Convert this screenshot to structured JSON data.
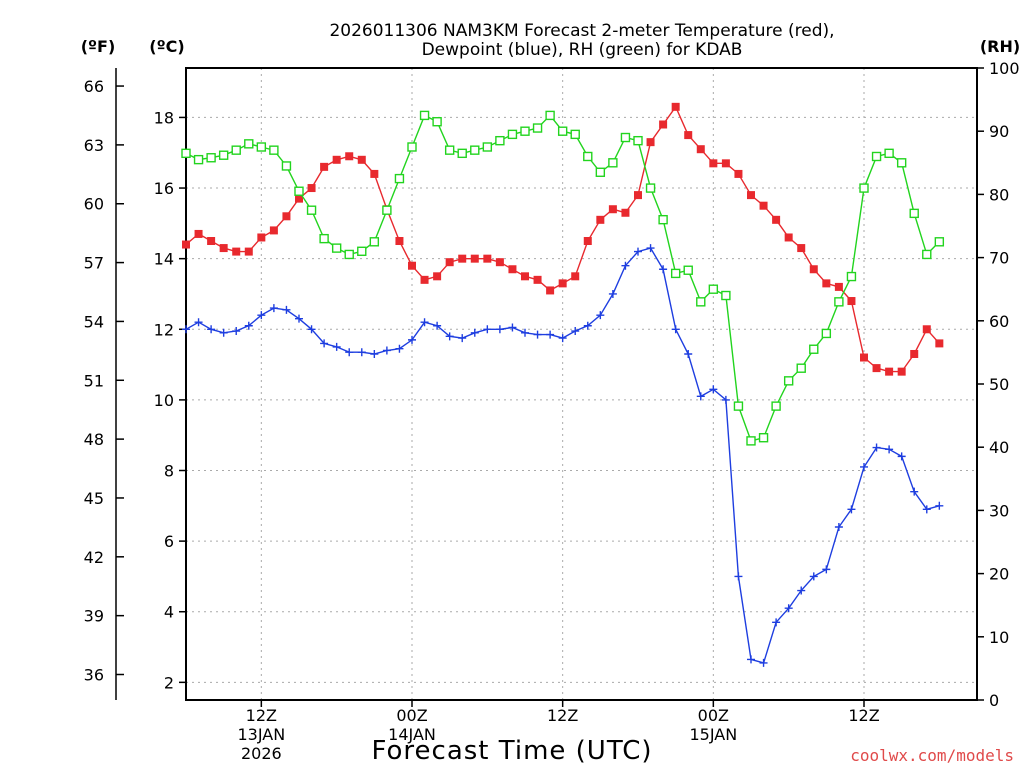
{
  "chart_data": {
    "type": "line",
    "title_line1": "2026011306 NAM3KM Forecast 2-meter Temperature (red),",
    "title_line2": "Dewpoint (blue), RH (green) for KDAB",
    "xlabel": "Forecast Time (UTC)",
    "credit": "coolwx.com/models",
    "units": {
      "fahrenheit": "(ºF)",
      "celsius": "(ºC)",
      "rh": "(RH)"
    },
    "x_range_hours": [
      0,
      63
    ],
    "y_celsius_range": [
      1.5,
      19.4
    ],
    "y_rh_range": [
      0,
      100
    ],
    "celsius_ticks": [
      "2",
      "4",
      "6",
      "8",
      "10",
      "12",
      "14",
      "16",
      "18"
    ],
    "fahrenheit_ticks": [
      "36",
      "39",
      "42",
      "45",
      "48",
      "51",
      "54",
      "57",
      "60",
      "63",
      "66"
    ],
    "rh_ticks": [
      "0",
      "10",
      "20",
      "30",
      "40",
      "50",
      "60",
      "70",
      "80",
      "90",
      "100"
    ],
    "x_ticks": [
      {
        "hour": 6,
        "line1": "12Z",
        "line2": "13JAN",
        "line3": "2026"
      },
      {
        "hour": 18,
        "line1": "00Z",
        "line2": "14JAN",
        "line3": ""
      },
      {
        "hour": 30,
        "line1": "12Z",
        "line2": "",
        "line3": ""
      },
      {
        "hour": 42,
        "line1": "00Z",
        "line2": "15JAN",
        "line3": ""
      },
      {
        "hour": 54,
        "line1": "12Z",
        "line2": "",
        "line3": ""
      }
    ],
    "series": [
      {
        "name": "2-meter Temperature",
        "unit": "°C",
        "color": "#e8292e",
        "marker": "filled-square",
        "values": [
          14.4,
          14.7,
          14.5,
          14.3,
          14.2,
          14.2,
          14.6,
          14.8,
          15.2,
          15.7,
          16.0,
          16.6,
          16.8,
          16.9,
          16.8,
          16.4,
          15.4,
          14.5,
          13.8,
          13.4,
          13.5,
          13.9,
          14.0,
          14.0,
          14.0,
          13.9,
          13.7,
          13.5,
          13.4,
          13.1,
          13.3,
          13.5,
          14.5,
          15.1,
          15.4,
          15.3,
          15.8,
          17.3,
          17.8,
          18.3,
          17.5,
          17.1,
          16.7,
          16.7,
          16.4,
          15.8,
          15.5,
          15.1,
          14.6,
          14.3,
          13.7,
          13.3,
          13.2,
          12.8,
          11.2,
          10.9,
          10.8,
          10.8,
          11.3,
          12.0,
          11.6
        ]
      },
      {
        "name": "Dewpoint",
        "unit": "°C",
        "color": "#1e3ee0",
        "marker": "plus",
        "values": [
          12.0,
          12.2,
          12.0,
          11.9,
          11.95,
          12.1,
          12.4,
          12.6,
          12.55,
          12.3,
          12.0,
          11.6,
          11.5,
          11.35,
          11.35,
          11.3,
          11.4,
          11.45,
          11.7,
          12.2,
          12.1,
          11.8,
          11.75,
          11.9,
          12.0,
          12.0,
          12.05,
          11.9,
          11.85,
          11.85,
          11.75,
          11.95,
          12.1,
          12.4,
          13.0,
          13.8,
          14.2,
          14.3,
          13.7,
          12.0,
          11.3,
          10.1,
          10.3,
          10.0,
          5.0,
          2.65,
          2.55,
          3.7,
          4.1,
          4.6,
          5.0,
          5.2,
          6.4,
          6.9,
          8.1,
          8.65,
          8.6,
          8.4,
          7.4,
          6.9,
          7.0
        ]
      },
      {
        "name": "RH",
        "unit": "%",
        "color": "#22d41e",
        "marker": "open-square",
        "values": [
          86.5,
          85.5,
          85.8,
          86.2,
          87.0,
          88.0,
          87.5,
          87.0,
          84.5,
          80.5,
          77.5,
          73.0,
          71.5,
          70.5,
          71.0,
          72.5,
          77.5,
          82.5,
          87.5,
          92.5,
          91.5,
          87.0,
          86.5,
          87.0,
          87.5,
          88.5,
          89.5,
          90.0,
          90.5,
          92.5,
          90.0,
          89.5,
          86.0,
          83.5,
          85.0,
          89.0,
          88.5,
          81.0,
          76.0,
          67.5,
          68.0,
          63.0,
          65.0,
          64.0,
          46.5,
          41.0,
          41.5,
          46.5,
          50.5,
          52.5,
          55.5,
          58.0,
          63.0,
          67.0,
          81.0,
          86.0,
          86.5,
          85.0,
          77.0,
          70.5,
          72.5
        ]
      }
    ]
  }
}
